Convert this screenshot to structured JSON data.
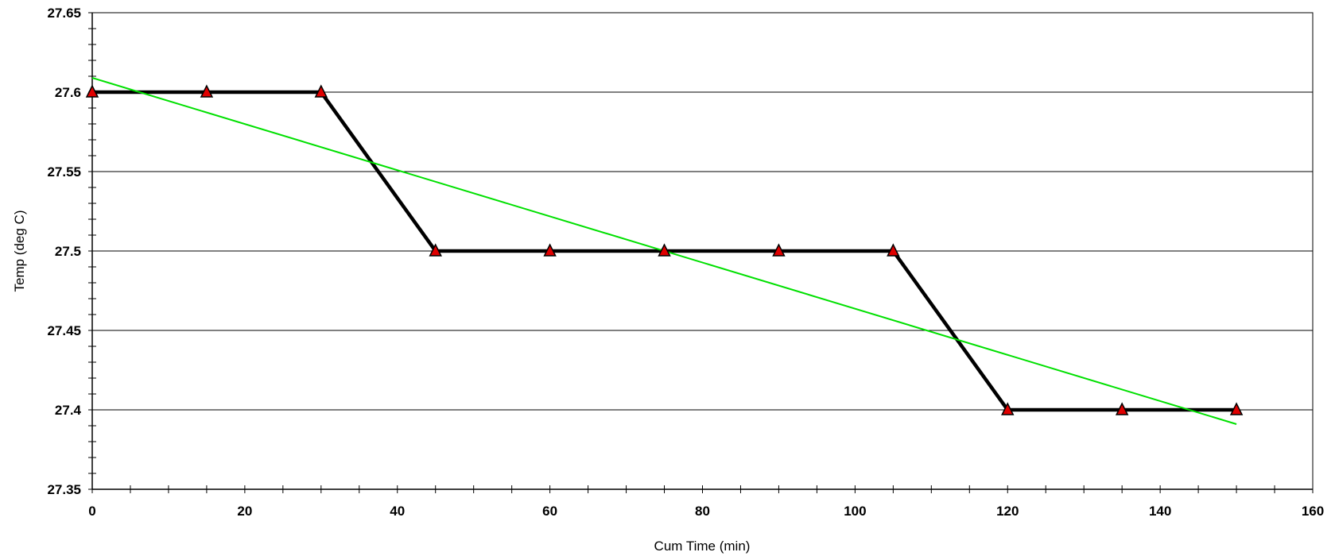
{
  "chart_data": {
    "type": "line",
    "xlabel": "Cum Time (min)",
    "ylabel": "Temp (deg C)",
    "xlim": [
      0,
      160
    ],
    "ylim": [
      27.35,
      27.65
    ],
    "x_ticks": [
      0,
      20,
      40,
      60,
      80,
      100,
      120,
      140,
      160
    ],
    "x_tick_labels": [
      "0",
      "20",
      "40",
      "60",
      "80",
      "100",
      "120",
      "140",
      "160"
    ],
    "y_ticks": [
      27.35,
      27.4,
      27.45,
      27.5,
      27.55,
      27.6,
      27.65
    ],
    "y_tick_labels": [
      "27.35",
      "27.4",
      "27.45",
      "27.5",
      "27.55",
      "27.6",
      "27.65"
    ],
    "horizontal_grid": true,
    "legend": "none",
    "series": [
      {
        "x": [
          0,
          15,
          30,
          45,
          60,
          75,
          90,
          105,
          120,
          135,
          150
        ],
        "y": [
          27.6,
          27.6,
          27.6,
          27.5,
          27.5,
          27.5,
          27.5,
          27.5,
          27.4,
          27.4,
          27.4
        ],
        "line_color": "#000000",
        "marker": "triangle",
        "marker_color": "#e00000"
      },
      {
        "kind": "trendline",
        "x": [
          0,
          150
        ],
        "y": [
          27.609,
          27.391
        ],
        "line_color": "#00e000"
      }
    ]
  }
}
